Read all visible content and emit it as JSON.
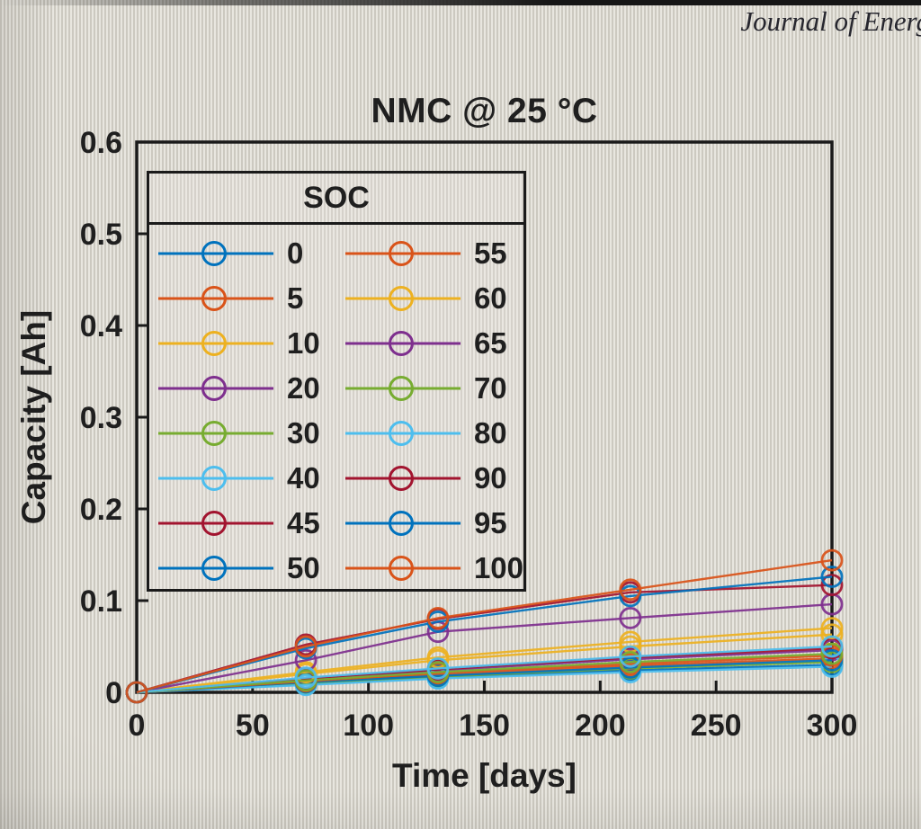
{
  "header": {
    "journal_title": "Journal of Energ"
  },
  "chart_data": {
    "type": "line",
    "title": "NMC @ 25 °C",
    "xlabel": "Time [days]",
    "ylabel": "Capacity [Ah]",
    "xlim": [
      0,
      300
    ],
    "ylim": [
      0,
      0.6
    ],
    "grid": false,
    "legend_title": "SOC",
    "legend_position": "upper-left-inside",
    "legend_columns": 2,
    "x_ticks": [
      0,
      50,
      100,
      150,
      200,
      250,
      300
    ],
    "x_tick_labels": [
      "0",
      "50",
      "100",
      "150",
      "200",
      "250",
      "300"
    ],
    "y_ticks": [
      0,
      0.1,
      0.2,
      0.3,
      0.4,
      0.5,
      0.6
    ],
    "y_tick_labels": [
      "0",
      "0.1",
      "0.2",
      "0.3",
      "0.4",
      "0.5",
      "0.6"
    ],
    "x": [
      0,
      73,
      130,
      213,
      300
    ],
    "marker": "circle-hollow",
    "series": [
      {
        "name": "0",
        "color": "#0072BD",
        "values": [
          0,
          0.009,
          0.016,
          0.024,
          0.03
        ]
      },
      {
        "name": "5",
        "color": "#D95319",
        "values": [
          0,
          0.012,
          0.019,
          0.029,
          0.037
        ]
      },
      {
        "name": "10",
        "color": "#EDB120",
        "values": [
          0,
          0.02,
          0.035,
          0.05,
          0.063
        ]
      },
      {
        "name": "20",
        "color": "#7E2F8E",
        "values": [
          0,
          0.014,
          0.024,
          0.036,
          0.046
        ]
      },
      {
        "name": "30",
        "color": "#77AC30",
        "values": [
          0,
          0.01,
          0.017,
          0.026,
          0.033
        ]
      },
      {
        "name": "40",
        "color": "#4DBEEE",
        "values": [
          0,
          0.008,
          0.015,
          0.022,
          0.028
        ]
      },
      {
        "name": "45",
        "color": "#A2142F",
        "values": [
          0,
          0.015,
          0.025,
          0.038,
          0.048
        ]
      },
      {
        "name": "50",
        "color": "#0072BD",
        "values": [
          0,
          0.011,
          0.018,
          0.027,
          0.035
        ]
      },
      {
        "name": "55",
        "color": "#D95319",
        "values": [
          0,
          0.012,
          0.021,
          0.031,
          0.04
        ]
      },
      {
        "name": "60",
        "color": "#EDB120",
        "values": [
          0,
          0.022,
          0.038,
          0.055,
          0.07
        ]
      },
      {
        "name": "65",
        "color": "#7E2F8E",
        "values": [
          0,
          0.035,
          0.066,
          0.081,
          0.096
        ]
      },
      {
        "name": "70",
        "color": "#77AC30",
        "values": [
          0,
          0.013,
          0.022,
          0.033,
          0.042
        ]
      },
      {
        "name": "80",
        "color": "#4DBEEE",
        "values": [
          0,
          0.016,
          0.026,
          0.039,
          0.05
        ]
      },
      {
        "name": "90",
        "color": "#A2142F",
        "values": [
          0,
          0.052,
          0.08,
          0.109,
          0.117
        ]
      },
      {
        "name": "95",
        "color": "#0072BD",
        "values": [
          0,
          0.048,
          0.077,
          0.105,
          0.126
        ]
      },
      {
        "name": "100",
        "color": "#D95319",
        "values": [
          0,
          0.05,
          0.081,
          0.112,
          0.144
        ]
      }
    ]
  }
}
